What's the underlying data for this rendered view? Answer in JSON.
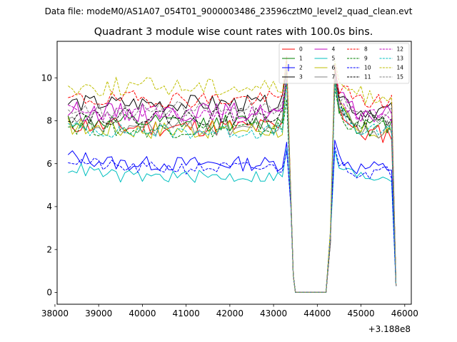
{
  "chart_data": {
    "type": "line",
    "suptitle": "Data file: modeM0/AS1A07_054T01_9000003486_23596cztM0_level2_quad_clean.evt",
    "title": "Quadrant 3 module wise count rates with 100.0s bins.",
    "xlabel": "",
    "ylabel": "",
    "x_offset_label": "+3.188e8",
    "xlim": [
      38050,
      46150
    ],
    "ylim": [
      -0.55,
      11.7
    ],
    "x_ticks": [
      38000,
      39000,
      40000,
      41000,
      42000,
      43000,
      44000,
      45000,
      46000
    ],
    "x_tick_labels": [
      "38000",
      "39000",
      "40000",
      "41000",
      "42000",
      "43000",
      "44000",
      "45000",
      "46000"
    ],
    "y_ticks": [
      0,
      2,
      4,
      6,
      8,
      10
    ],
    "y_tick_labels": [
      "0",
      "2",
      "4",
      "6",
      "8",
      "10"
    ],
    "grid": false,
    "legend_location": "top-right",
    "legend_columns": 4,
    "segments": {
      "on1_start": 38300,
      "on1_end": 43300,
      "gap_x": [
        43400,
        43500,
        43600,
        43700,
        43800,
        43900,
        44000,
        44100,
        44200
      ],
      "on2_start": 44300,
      "on2_end": 45700,
      "bin": 100,
      "end_x": 45800
    },
    "series": [
      {
        "name": "0",
        "color": "#ff0000",
        "dash": "solid",
        "level1": 7.7,
        "level2": 7.4,
        "noise": 0.45,
        "seed": 11,
        "peak": 10.3,
        "edge2": 10.4,
        "tail": 0.3
      },
      {
        "name": "1",
        "color": "#008000",
        "dash": "solid",
        "level1": 7.9,
        "level2": 7.8,
        "noise": 0.4,
        "seed": 12,
        "peak": 10.2,
        "edge2": 10.0,
        "tail": 0.3
      },
      {
        "name": "2",
        "color": "#0000ff",
        "dash": "solid",
        "level1": 6.0,
        "level2": 5.8,
        "noise": 0.35,
        "seed": 13,
        "peak": 7.0,
        "edge2": 7.1,
        "tail": 0.3
      },
      {
        "name": "3",
        "color": "#000000",
        "dash": "solid",
        "level1": 8.8,
        "level2": 8.5,
        "noise": 0.4,
        "seed": 14,
        "peak": 10.4,
        "edge2": 10.5,
        "tail": 0.3
      },
      {
        "name": "4",
        "color": "#c000c0",
        "dash": "solid",
        "level1": 8.4,
        "level2": 8.3,
        "noise": 0.45,
        "seed": 15,
        "peak": 10.0,
        "edge2": 10.2,
        "tail": 0.3
      },
      {
        "name": "5",
        "color": "#00bfbf",
        "dash": "solid",
        "level1": 5.4,
        "level2": 5.4,
        "noise": 0.3,
        "seed": 16,
        "peak": 6.7,
        "edge2": 6.6,
        "tail": 0.3
      },
      {
        "name": "6",
        "color": "#bfbf00",
        "dash": "solid",
        "level1": 7.6,
        "level2": 7.5,
        "noise": 0.45,
        "seed": 17,
        "peak": 10.0,
        "edge2": 10.2,
        "tail": 0.3
      },
      {
        "name": "7",
        "color": "#808080",
        "dash": "solid",
        "level1": 7.7,
        "level2": 7.6,
        "noise": 0.45,
        "seed": 18,
        "peak": 10.3,
        "edge2": 10.2,
        "tail": 0.3
      },
      {
        "name": "8",
        "color": "#ff0000",
        "dash": "dashed",
        "level1": 9.0,
        "level2": 8.9,
        "noise": 0.4,
        "seed": 19,
        "peak": 11.0,
        "edge2": 10.6,
        "tail": 0.3
      },
      {
        "name": "9",
        "color": "#008000",
        "dash": "dashed",
        "level1": 7.6,
        "level2": 7.6,
        "noise": 0.4,
        "seed": 20,
        "peak": 9.0,
        "edge2": 9.5,
        "tail": 0.3
      },
      {
        "name": "10",
        "color": "#0000ff",
        "dash": "dashed",
        "level1": 5.8,
        "level2": 5.6,
        "noise": 0.3,
        "seed": 21,
        "peak": 6.6,
        "edge2": 6.8,
        "tail": 0.3
      },
      {
        "name": "11",
        "color": "#000000",
        "dash": "dashed",
        "level1": 8.2,
        "level2": 8.0,
        "noise": 0.4,
        "seed": 22,
        "peak": 9.9,
        "edge2": 10.1,
        "tail": 0.3
      },
      {
        "name": "12",
        "color": "#c000c0",
        "dash": "dashed",
        "level1": 8.3,
        "level2": 8.2,
        "noise": 0.4,
        "seed": 23,
        "peak": 10.0,
        "edge2": 10.1,
        "tail": 0.3
      },
      {
        "name": "13",
        "color": "#00bfbf",
        "dash": "dashed",
        "level1": 7.5,
        "level2": 7.5,
        "noise": 0.35,
        "seed": 24,
        "peak": 9.8,
        "edge2": 9.7,
        "tail": 0.3
      },
      {
        "name": "14",
        "color": "#bfbf00",
        "dash": "dashed",
        "level1": 9.6,
        "level2": 9.2,
        "noise": 0.45,
        "seed": 25,
        "peak": 10.9,
        "edge2": 10.8,
        "tail": 0.3
      },
      {
        "name": "15",
        "color": "#808080",
        "dash": "dashed",
        "level1": 8.5,
        "level2": 8.3,
        "noise": 0.4,
        "seed": 26,
        "peak": 10.1,
        "edge2": 10.2,
        "tail": 0.3
      }
    ]
  }
}
